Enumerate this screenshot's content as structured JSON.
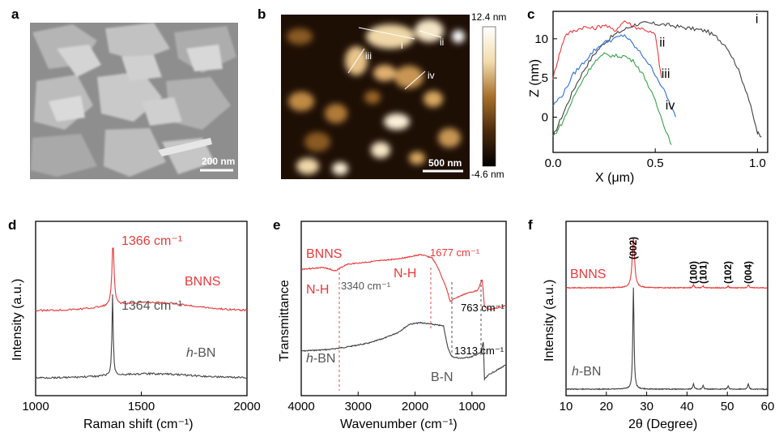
{
  "panels": {
    "a": {
      "letter": "a",
      "scale_bar": "200 nm"
    },
    "b": {
      "letter": "b",
      "scale_bar": "500 nm",
      "colorbar_max": "12.4 nm",
      "colorbar_min": "-4.6 nm",
      "profile_labels": [
        "i",
        "ii",
        "iii",
        "iv"
      ]
    },
    "c": {
      "letter": "c"
    },
    "d": {
      "letter": "d"
    },
    "e": {
      "letter": "e"
    },
    "f": {
      "letter": "f"
    }
  },
  "chart_data": [
    {
      "panel": "c",
      "type": "line",
      "xlabel": "X (μm)",
      "ylabel": "Z (nm)",
      "xlim": [
        0.0,
        1.05
      ],
      "ylim": [
        -4.5,
        13.5
      ],
      "x_ticks": [
        "0.0",
        "0.5",
        "1.0"
      ],
      "y_ticks": [
        "0",
        "5",
        "10"
      ],
      "series": [
        {
          "name": "i",
          "color": "#404040",
          "x": [
            0.0,
            0.05,
            0.1,
            0.15,
            0.2,
            0.25,
            0.3,
            0.35,
            0.4,
            0.45,
            0.5,
            0.55,
            0.6,
            0.65,
            0.7,
            0.75,
            0.8,
            0.85,
            0.9,
            0.95,
            1.0,
            1.02
          ],
          "y": [
            -2.5,
            0.5,
            3.5,
            6.0,
            8.0,
            9.5,
            10.5,
            11.2,
            11.8,
            12.0,
            11.9,
            11.8,
            11.6,
            11.4,
            11.2,
            11.0,
            10.2,
            9.0,
            6.5,
            3.0,
            -2.0,
            -2.5
          ]
        },
        {
          "name": "ii",
          "color": "#e8393b",
          "x": [
            0.0,
            0.03,
            0.06,
            0.1,
            0.15,
            0.2,
            0.25,
            0.3,
            0.35,
            0.4,
            0.45,
            0.5,
            0.53
          ],
          "y": [
            5.0,
            8.0,
            10.5,
            11.0,
            11.5,
            11.3,
            11.8,
            11.0,
            12.3,
            11.5,
            11.2,
            10.5,
            5.0
          ]
        },
        {
          "name": "iii",
          "color": "#2f6fd6",
          "x": [
            0.0,
            0.05,
            0.1,
            0.15,
            0.2,
            0.25,
            0.3,
            0.35,
            0.4,
            0.45,
            0.5,
            0.55,
            0.6
          ],
          "y": [
            1.5,
            3.0,
            5.5,
            7.0,
            8.5,
            9.5,
            10.0,
            10.5,
            9.0,
            7.5,
            5.5,
            3.0,
            0.0
          ]
        },
        {
          "name": "iv",
          "color": "#3aa04a",
          "x": [
            0.0,
            0.05,
            0.1,
            0.15,
            0.2,
            0.25,
            0.3,
            0.35,
            0.4,
            0.45,
            0.5,
            0.55,
            0.58
          ],
          "y": [
            -2.5,
            -0.5,
            2.5,
            5.0,
            7.0,
            8.0,
            7.8,
            7.8,
            7.0,
            5.0,
            2.0,
            -1.5,
            -3.5
          ]
        }
      ]
    },
    {
      "panel": "d",
      "type": "line",
      "xlabel": "Raman shift (cm⁻¹)",
      "ylabel": "Intensity (a.u.)",
      "xlim": [
        1000,
        2000
      ],
      "x_ticks": [
        "1000",
        "1500",
        "2000"
      ],
      "series": [
        {
          "name": "BNNS",
          "color": "#e8393b",
          "peak": 1366,
          "peak_label": "1366 cm⁻¹"
        },
        {
          "name": "h-BN",
          "color": "#404040",
          "peak": 1364,
          "peak_label": "1364 cm⁻¹"
        }
      ],
      "legend": {
        "bnns": "BNNS",
        "hbn_italic": "h",
        "hbn_rest": "-BN"
      }
    },
    {
      "panel": "e",
      "type": "line",
      "xlabel": "Wavenumber (cm⁻¹)",
      "ylabel": "Transmittance",
      "xlim": [
        4000,
        400
      ],
      "x_ticks": [
        "4000",
        "3000",
        "2000",
        "1000"
      ],
      "series": [
        {
          "name": "BNNS",
          "color": "#e8393b"
        },
        {
          "name": "h-BN",
          "color": "#404040"
        }
      ],
      "annotations": {
        "nh_1": "N-H",
        "nh_2": "N-H",
        "bn": "B-N",
        "w3340": "3340 cm⁻¹",
        "w1677": "1677 cm⁻¹",
        "w763": "763 cm⁻¹",
        "w1313": "1313 cm⁻¹"
      },
      "legend": {
        "bnns": "BNNS",
        "hbn_italic": "h",
        "hbn_rest": "-BN"
      }
    },
    {
      "panel": "f",
      "type": "line",
      "xlabel": "2θ (Degree)",
      "ylabel": "Intensity (a.u.)",
      "xlim": [
        10,
        60
      ],
      "x_ticks": [
        "10",
        "20",
        "30",
        "40",
        "50",
        "60"
      ],
      "series": [
        {
          "name": "BNNS",
          "color": "#e8393b"
        },
        {
          "name": "h-BN",
          "color": "#404040"
        }
      ],
      "peaks": [
        {
          "x": 26.7,
          "label": "(002)"
        },
        {
          "x": 41.6,
          "label": "(100)"
        },
        {
          "x": 44.0,
          "label": "(101)"
        },
        {
          "x": 50.2,
          "label": "(102)"
        },
        {
          "x": 55.2,
          "label": "(004)"
        }
      ],
      "legend": {
        "bnns": "BNNS",
        "hbn_italic": "h",
        "hbn_rest": "-BN"
      }
    }
  ]
}
